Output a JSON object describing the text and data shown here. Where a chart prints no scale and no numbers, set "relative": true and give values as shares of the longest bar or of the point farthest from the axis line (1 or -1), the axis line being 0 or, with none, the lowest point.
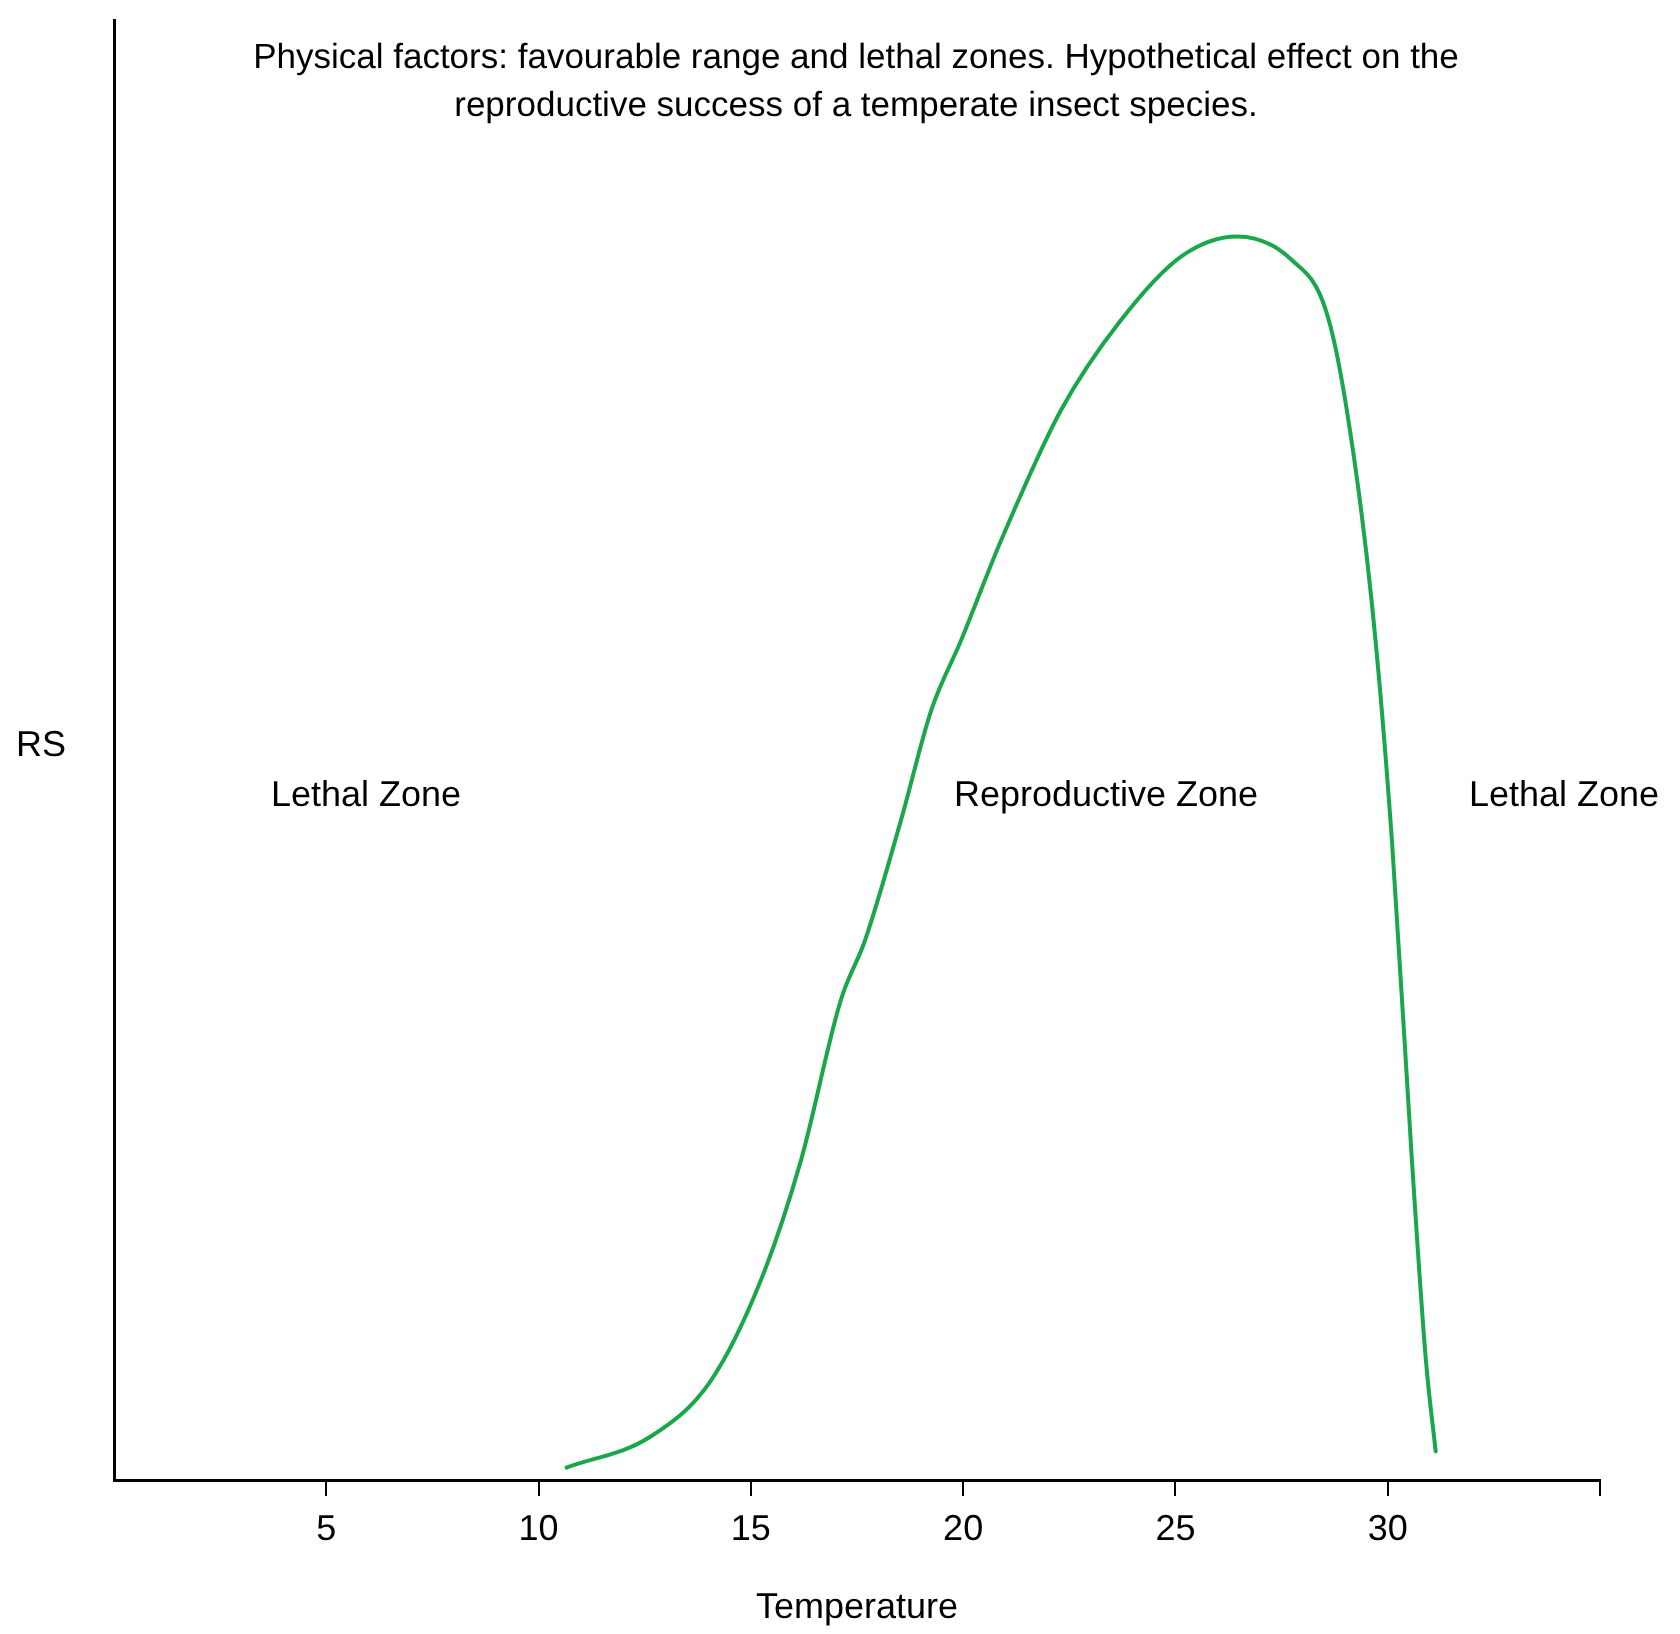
{
  "chart_data": {
    "type": "line",
    "title": "Physical factors: favourable range and lethal zones. Hypothetical effect on the reproductive success of a temperate insect species.",
    "xlabel": "Temperature",
    "ylabel": "RS",
    "relative": true,
    "marker": "none",
    "xlim": [
      0,
      35
    ],
    "xticks": [
      5,
      10,
      15,
      20,
      25,
      30,
      {
        "value": 35,
        "label": null
      }
    ],
    "annotations": [
      "Lethal Zone",
      "Reproductive Zone",
      "Lethal Zone"
    ],
    "series": [
      {
        "color": "#1aa64a",
        "x": [
          10.66,
          12.64,
          14.06,
          15.24,
          16.18,
          17.12,
          17.69,
          18.54,
          19.25,
          19.95,
          20.9,
          22.3,
          23.7,
          25.14,
          26.46,
          27.74,
          28.54,
          29.0,
          29.62,
          30.1,
          30.57,
          30.9,
          31.13
        ],
        "values": [
          0.01,
          0.035,
          0.08,
          0.161,
          0.257,
          0.386,
          0.434,
          0.531,
          0.619,
          0.675,
          0.756,
          0.86,
          0.932,
          0.984,
          1,
          0.981,
          0.941,
          0.868,
          0.707,
          0.514,
          0.257,
          0.096,
          0.023
        ]
      }
    ]
  }
}
